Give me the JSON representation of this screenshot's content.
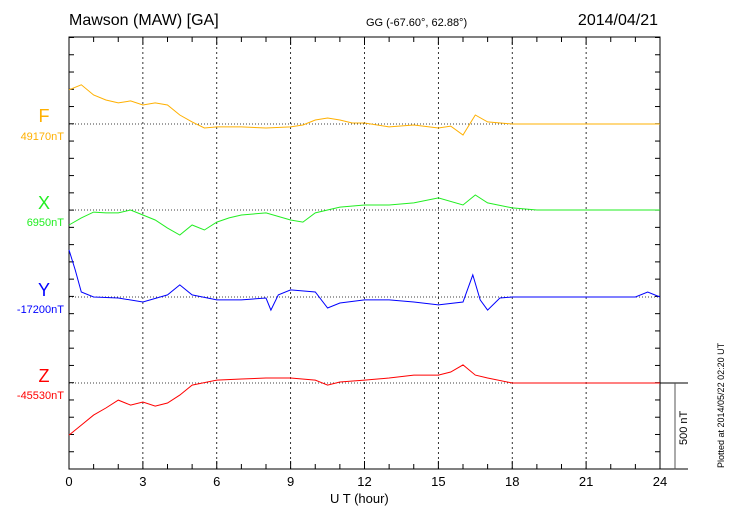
{
  "header": {
    "title": "Mawson (MAW)  [GA]",
    "coords": "GG (-67.60°,  62.88°)",
    "date": "2014/04/21"
  },
  "footer": {
    "plotted": "Plotted at 2014/05/22 02:20 UT",
    "scale_label": "500 nT"
  },
  "chart_data": {
    "type": "line",
    "xlabel": "U T (hour)",
    "xlim": [
      0,
      24
    ],
    "xticks": [
      "0",
      "3",
      "6",
      "9",
      "12",
      "15",
      "18",
      "21",
      "24"
    ],
    "scale_bar_nT": 500,
    "units": "nT deviation from baseline",
    "series": [
      {
        "name": "F",
        "baseline_label": "49170nT",
        "color": "#ffb000",
        "t": [
          0,
          0.5,
          1,
          1.5,
          2,
          2.5,
          3,
          3.5,
          4,
          4.5,
          5,
          5.5,
          6,
          7,
          8,
          9,
          9.5,
          10,
          10.5,
          11,
          11.5,
          12,
          13,
          14,
          15,
          15.5,
          16,
          16.5,
          17,
          18,
          20,
          22,
          24
        ],
        "v": [
          198,
          227,
          168,
          139,
          122,
          134,
          110,
          122,
          110,
          52,
          12,
          -23,
          -17,
          -17,
          -23,
          -17,
          -6,
          23,
          35,
          23,
          6,
          6,
          -17,
          -6,
          -23,
          -12,
          -64,
          52,
          12,
          0,
          0,
          0,
          0
        ]
      },
      {
        "name": "X",
        "baseline_label": "6950nT",
        "color": "#22ee22",
        "t": [
          0,
          0.5,
          1,
          1.5,
          2,
          2.5,
          3,
          3.5,
          4,
          4.5,
          5,
          5.5,
          6,
          6.5,
          7,
          8,
          9,
          9.5,
          10,
          11,
          12,
          13,
          14,
          15,
          16,
          16.5,
          17,
          18,
          19,
          24
        ],
        "v": [
          -87,
          -46,
          -12,
          -17,
          -17,
          0,
          -29,
          -58,
          -105,
          -145,
          -87,
          -116,
          -70,
          -46,
          -29,
          -17,
          -58,
          -70,
          -17,
          17,
          29,
          29,
          41,
          70,
          29,
          87,
          41,
          12,
          0,
          0
        ]
      },
      {
        "name": "Y",
        "baseline_label": "-17200nT",
        "color": "#0000ff",
        "t": [
          0,
          0.25,
          0.5,
          1,
          2,
          3,
          4,
          4.5,
          5,
          6,
          7,
          8,
          8.2,
          8.5,
          9,
          10,
          10.5,
          11,
          12,
          13,
          14,
          15,
          16,
          16.4,
          16.7,
          17,
          17.5,
          18,
          23,
          23.5,
          24
        ],
        "v": [
          273,
          157,
          29,
          0,
          -6,
          -29,
          12,
          70,
          12,
          -17,
          -17,
          -6,
          -76,
          12,
          41,
          29,
          -64,
          -35,
          -17,
          -17,
          -29,
          -46,
          -29,
          128,
          -17,
          -76,
          -6,
          0,
          0,
          29,
          0
        ]
      },
      {
        "name": "Z",
        "baseline_label": "-45530nT",
        "color": "#ff0000",
        "t": [
          0,
          0.5,
          1,
          1.5,
          2,
          2.5,
          3,
          3.5,
          4,
          4.5,
          5,
          6,
          7,
          8,
          9,
          10,
          10.5,
          11,
          12,
          13,
          14,
          15,
          15.5,
          16,
          16.5,
          17,
          18,
          24
        ],
        "v": [
          -302,
          -244,
          -186,
          -145,
          -99,
          -128,
          -110,
          -134,
          -116,
          -70,
          -12,
          17,
          23,
          29,
          29,
          17,
          -12,
          6,
          17,
          29,
          46,
          46,
          64,
          105,
          46,
          29,
          0,
          0
        ]
      }
    ]
  }
}
